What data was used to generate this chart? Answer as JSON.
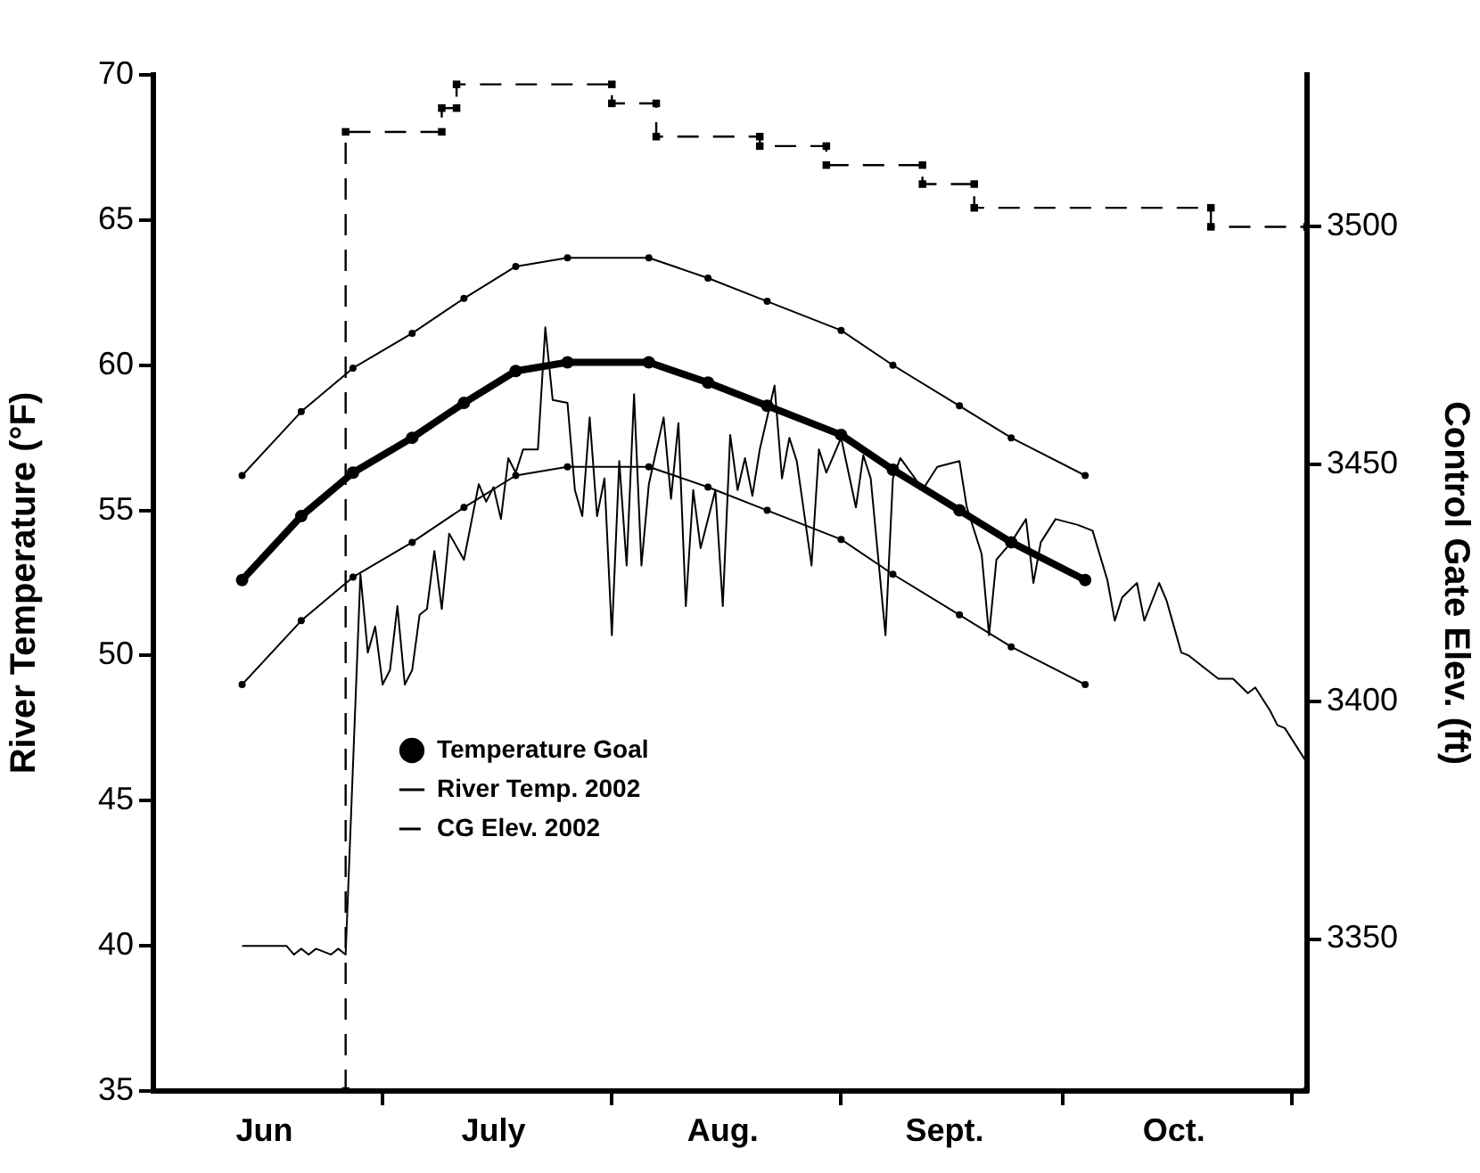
{
  "chart_data": {
    "type": "line",
    "xlabel": null,
    "ylabel": "River Temperature (°F)",
    "y2label": "Control Gate Elev. (ft)",
    "xlim": [
      "2002-05-31",
      "2002-11-03"
    ],
    "xticks": [
      {
        "value": "2002-06-15",
        "label": "Jun"
      },
      {
        "value": "2002-07-01",
        "label": null
      },
      {
        "value": "2002-07-16",
        "label": "July"
      },
      {
        "value": "2002-08-01",
        "label": null
      },
      {
        "value": "2002-08-16",
        "label": "Aug."
      },
      {
        "value": "2002-09-01",
        "label": null
      },
      {
        "value": "2002-09-15",
        "label": "Sept."
      },
      {
        "value": "2002-10-01",
        "label": null
      },
      {
        "value": "2002-10-16",
        "label": "Oct."
      },
      {
        "value": "2002-11-01",
        "label": null
      }
    ],
    "ylim": [
      35,
      70
    ],
    "yticks": [
      35,
      40,
      45,
      50,
      55,
      60,
      65,
      70
    ],
    "y2lim": [
      3318,
      3532
    ],
    "y2ticks": [
      3350,
      3400,
      3450,
      3500
    ],
    "grid": false,
    "legend": "bottom",
    "series": [
      {
        "name": "Temperature Goal",
        "color": "#000000",
        "marker": "circle",
        "line_style": "solid",
        "x": [
          "2002-06-12",
          "2002-06-20",
          "2002-06-27",
          "2002-07-05",
          "2002-07-12",
          "2002-07-19",
          "2002-07-26",
          "2002-08-06",
          "2002-08-14",
          "2002-08-22",
          "2002-09-01",
          "2002-09-08",
          "2002-09-17",
          "2002-09-24",
          "2002-10-04"
        ],
        "values": [
          52.6,
          54.8,
          56.3,
          57.5,
          58.7,
          59.8,
          60.1,
          60.1,
          59.4,
          58.6,
          57.6,
          56.4,
          55.0,
          53.9,
          52.6
        ]
      },
      {
        "color": "#000000",
        "marker": "circle",
        "line_style": "solid",
        "x": [
          "2002-06-12",
          "2002-06-20",
          "2002-06-27",
          "2002-07-05",
          "2002-07-12",
          "2002-07-19",
          "2002-07-26",
          "2002-08-06",
          "2002-08-14",
          "2002-08-22",
          "2002-09-01",
          "2002-09-08",
          "2002-09-17",
          "2002-09-24",
          "2002-10-04"
        ],
        "values": [
          56.2,
          58.4,
          59.9,
          61.1,
          62.3,
          63.4,
          63.7,
          63.7,
          63.0,
          62.2,
          61.2,
          60.0,
          58.6,
          57.5,
          56.2
        ]
      },
      {
        "color": "#000000",
        "marker": "circle",
        "line_style": "solid",
        "x": [
          "2002-06-12",
          "2002-06-20",
          "2002-06-27",
          "2002-07-05",
          "2002-07-12",
          "2002-07-19",
          "2002-07-26",
          "2002-08-06",
          "2002-08-14",
          "2002-08-22",
          "2002-09-01",
          "2002-09-08",
          "2002-09-17",
          "2002-09-24",
          "2002-10-04"
        ],
        "values": [
          49.0,
          51.2,
          52.7,
          53.9,
          55.1,
          56.2,
          56.5,
          56.5,
          55.8,
          55.0,
          54.0,
          52.8,
          51.4,
          50.3,
          49.0
        ]
      },
      {
        "name": "River Temp. 2002",
        "color": "#000000",
        "marker": "none",
        "line_style": "solid",
        "x": [
          "2002-06-12",
          "2002-06-18",
          "2002-06-19",
          "2002-06-20",
          "2002-06-21",
          "2002-06-22",
          "2002-06-24",
          "2002-06-25",
          "2002-06-26",
          "2002-06-28",
          "2002-06-29",
          "2002-06-30",
          "2002-07-01",
          "2002-07-02",
          "2002-07-03",
          "2002-07-04",
          "2002-07-05",
          "2002-07-06",
          "2002-07-07",
          "2002-07-08",
          "2002-07-09",
          "2002-07-10",
          "2002-07-12",
          "2002-07-14",
          "2002-07-15",
          "2002-07-16",
          "2002-07-17",
          "2002-07-18",
          "2002-07-19",
          "2002-07-20",
          "2002-07-22",
          "2002-07-23",
          "2002-07-24",
          "2002-07-26",
          "2002-07-27",
          "2002-07-28",
          "2002-07-29",
          "2002-07-30",
          "2002-07-31",
          "2002-08-01",
          "2002-08-02",
          "2002-08-03",
          "2002-08-04",
          "2002-08-05",
          "2002-08-06",
          "2002-08-08",
          "2002-08-09",
          "2002-08-10",
          "2002-08-11",
          "2002-08-12",
          "2002-08-13",
          "2002-08-15",
          "2002-08-16",
          "2002-08-17",
          "2002-08-18",
          "2002-08-19",
          "2002-08-20",
          "2002-08-21",
          "2002-08-23",
          "2002-08-24",
          "2002-08-25",
          "2002-08-26",
          "2002-08-28",
          "2002-08-29",
          "2002-08-30",
          "2002-09-01",
          "2002-09-02",
          "2002-09-03",
          "2002-09-04",
          "2002-09-05",
          "2002-09-07",
          "2002-09-08",
          "2002-09-09",
          "2002-09-11",
          "2002-09-12",
          "2002-09-14",
          "2002-09-17",
          "2002-09-18",
          "2002-09-20",
          "2002-09-21",
          "2002-09-22",
          "2002-09-24",
          "2002-09-26",
          "2002-09-27",
          "2002-09-28",
          "2002-09-30",
          "2002-10-03",
          "2002-10-05",
          "2002-10-07",
          "2002-10-08",
          "2002-10-09",
          "2002-10-11",
          "2002-10-12",
          "2002-10-14",
          "2002-10-15",
          "2002-10-16",
          "2002-10-17",
          "2002-10-18",
          "2002-10-21",
          "2002-10-22",
          "2002-10-24",
          "2002-10-26",
          "2002-10-27",
          "2002-10-29",
          "2002-10-30",
          "2002-10-31",
          "2002-11-03"
        ],
        "values": [
          40.0,
          40.0,
          39.7,
          39.9,
          39.7,
          39.9,
          39.7,
          39.9,
          39.7,
          52.8,
          50.1,
          51.0,
          49.0,
          49.5,
          51.7,
          49.0,
          49.5,
          51.4,
          51.6,
          53.6,
          51.6,
          54.2,
          53.3,
          55.9,
          55.3,
          55.8,
          54.7,
          56.8,
          56.3,
          57.1,
          57.1,
          61.3,
          58.8,
          58.7,
          55.7,
          54.8,
          58.2,
          54.8,
          56.1,
          50.7,
          56.7,
          53.1,
          59.0,
          53.1,
          55.9,
          58.2,
          55.4,
          58.0,
          51.7,
          55.7,
          53.7,
          55.7,
          51.7,
          57.6,
          55.7,
          56.8,
          55.5,
          57.1,
          59.3,
          56.1,
          57.5,
          56.7,
          53.1,
          57.1,
          56.3,
          57.5,
          56.3,
          55.1,
          56.9,
          56.1,
          50.7,
          56.1,
          56.8,
          56.1,
          55.7,
          56.5,
          56.7,
          55.1,
          53.5,
          50.7,
          53.3,
          53.9,
          54.7,
          52.5,
          53.9,
          54.7,
          54.5,
          54.3,
          52.6,
          51.2,
          52.0,
          52.5,
          51.2,
          52.5,
          51.9,
          51.0,
          50.1,
          50.0,
          49.4,
          49.2,
          49.2,
          48.7,
          48.9,
          48.1,
          47.6,
          47.5,
          46.3
        ]
      },
      {
        "name": "CG Elev. 2002",
        "axis": "y2",
        "color": "#000000",
        "marker": "square",
        "line_style": "dashed",
        "x": [
          "2002-06-26",
          "2002-06-26",
          "2002-07-09",
          "2002-07-09",
          "2002-07-11",
          "2002-07-11",
          "2002-08-01",
          "2002-08-01",
          "2002-08-07",
          "2002-08-07",
          "2002-08-21",
          "2002-08-21",
          "2002-08-30",
          "2002-08-30",
          "2002-09-12",
          "2002-09-12",
          "2002-09-19",
          "2002-09-19",
          "2002-10-21",
          "2002-10-21",
          "2002-11-03",
          "2002-11-03"
        ],
        "values": [
          3318,
          3520,
          3520,
          3525,
          3525,
          3530,
          3530,
          3526,
          3526,
          3519,
          3519,
          3517,
          3517,
          3513,
          3513,
          3509,
          3509,
          3504,
          3504,
          3500,
          3500,
          3318
        ]
      }
    ]
  }
}
